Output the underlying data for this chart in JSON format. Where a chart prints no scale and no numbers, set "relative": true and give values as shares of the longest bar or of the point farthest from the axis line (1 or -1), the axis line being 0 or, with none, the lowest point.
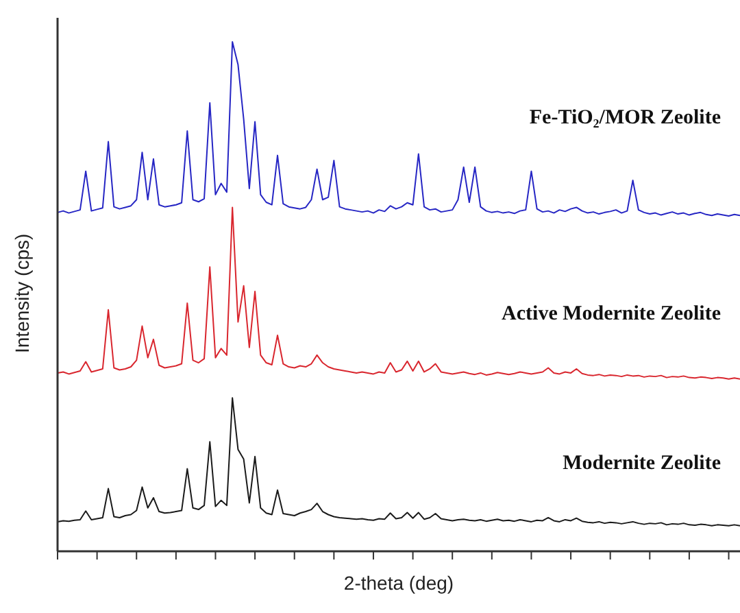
{
  "chart_data": {
    "type": "line",
    "relative": true,
    "xlabel": "2-theta (deg)",
    "ylabel": "Intensity (cps)",
    "tick_labels": false,
    "marker": "none",
    "line_style": "solid",
    "categories": [
      null,
      null,
      null,
      null,
      null,
      null,
      null,
      null,
      null,
      null,
      null,
      null,
      null,
      null,
      null,
      null,
      null,
      null,
      null,
      null,
      null,
      null,
      null,
      null,
      null,
      null,
      null,
      null,
      null,
      null,
      null,
      null,
      null,
      null,
      null,
      null,
      null,
      null,
      null,
      null,
      null,
      null,
      null,
      null,
      null,
      null,
      null,
      null,
      null,
      null,
      null,
      null,
      null,
      null,
      null,
      null,
      null,
      null,
      null,
      null,
      null,
      null,
      null,
      null,
      null,
      null,
      null,
      null,
      null,
      null,
      null,
      null,
      null,
      null,
      null,
      null,
      null,
      null,
      null,
      null,
      null,
      null,
      null,
      null,
      null,
      null,
      null,
      null,
      null,
      null,
      null,
      null,
      null,
      null,
      null,
      null,
      null,
      null,
      null,
      null,
      null,
      null,
      null,
      null,
      null,
      null,
      null,
      null,
      null,
      null,
      null,
      null,
      null,
      null,
      null,
      null,
      null,
      null,
      null,
      null,
      null,
      null
    ],
    "series": [
      {
        "name": "Fe-TiO₂/MOR Zeolite",
        "color": "#2626c4",
        "values": [
          0.665,
          0.668,
          0.664,
          0.667,
          0.67,
          0.746,
          0.668,
          0.671,
          0.674,
          0.804,
          0.676,
          0.672,
          0.675,
          0.678,
          0.69,
          0.783,
          0.69,
          0.77,
          0.68,
          0.676,
          0.678,
          0.68,
          0.684,
          0.825,
          0.69,
          0.686,
          0.692,
          0.88,
          0.7,
          0.722,
          0.705,
          1.0,
          0.955,
          0.848,
          0.712,
          0.843,
          0.7,
          0.685,
          0.68,
          0.777,
          0.682,
          0.676,
          0.674,
          0.672,
          0.675,
          0.69,
          0.75,
          0.69,
          0.695,
          0.767,
          0.676,
          0.672,
          0.67,
          0.668,
          0.666,
          0.668,
          0.664,
          0.67,
          0.667,
          0.678,
          0.672,
          0.676,
          0.684,
          0.68,
          0.78,
          0.676,
          0.67,
          0.672,
          0.666,
          0.668,
          0.67,
          0.69,
          0.754,
          0.685,
          0.754,
          0.676,
          0.668,
          0.665,
          0.667,
          0.664,
          0.666,
          0.663,
          0.668,
          0.67,
          0.746,
          0.672,
          0.666,
          0.668,
          0.664,
          0.67,
          0.667,
          0.672,
          0.675,
          0.668,
          0.664,
          0.666,
          0.662,
          0.665,
          0.667,
          0.67,
          0.664,
          0.668,
          0.728,
          0.67,
          0.665,
          0.662,
          0.664,
          0.66,
          0.663,
          0.666,
          0.662,
          0.664,
          0.66,
          0.663,
          0.665,
          0.661,
          0.659,
          0.662,
          0.66,
          0.658,
          0.661,
          0.659
        ]
      },
      {
        "name": "Active Modernite Zeolite",
        "color": "#d9262e",
        "values": [
          0.35,
          0.352,
          0.348,
          0.351,
          0.354,
          0.372,
          0.352,
          0.355,
          0.358,
          0.474,
          0.36,
          0.356,
          0.358,
          0.362,
          0.375,
          0.442,
          0.38,
          0.416,
          0.365,
          0.36,
          0.362,
          0.364,
          0.368,
          0.487,
          0.375,
          0.37,
          0.378,
          0.558,
          0.38,
          0.398,
          0.385,
          0.675,
          0.45,
          0.521,
          0.4,
          0.51,
          0.385,
          0.37,
          0.366,
          0.424,
          0.368,
          0.362,
          0.36,
          0.364,
          0.362,
          0.368,
          0.385,
          0.37,
          0.362,
          0.358,
          0.356,
          0.354,
          0.352,
          0.35,
          0.352,
          0.35,
          0.348,
          0.352,
          0.35,
          0.37,
          0.352,
          0.356,
          0.373,
          0.354,
          0.373,
          0.352,
          0.358,
          0.368,
          0.352,
          0.35,
          0.348,
          0.35,
          0.352,
          0.349,
          0.347,
          0.35,
          0.346,
          0.348,
          0.351,
          0.349,
          0.347,
          0.349,
          0.352,
          0.35,
          0.348,
          0.35,
          0.352,
          0.36,
          0.35,
          0.348,
          0.352,
          0.35,
          0.358,
          0.349,
          0.346,
          0.345,
          0.347,
          0.344,
          0.346,
          0.345,
          0.343,
          0.346,
          0.344,
          0.345,
          0.342,
          0.344,
          0.343,
          0.345,
          0.341,
          0.343,
          0.342,
          0.344,
          0.341,
          0.34,
          0.342,
          0.341,
          0.339,
          0.341,
          0.34,
          0.338,
          0.34,
          0.338
        ]
      },
      {
        "name": "Modernite Zeolite",
        "color": "#1a1a1a",
        "values": [
          0.058,
          0.06,
          0.059,
          0.061,
          0.062,
          0.079,
          0.062,
          0.064,
          0.066,
          0.123,
          0.068,
          0.066,
          0.07,
          0.072,
          0.08,
          0.126,
          0.085,
          0.105,
          0.078,
          0.075,
          0.076,
          0.078,
          0.08,
          0.162,
          0.085,
          0.082,
          0.09,
          0.215,
          0.088,
          0.1,
          0.09,
          0.301,
          0.2,
          0.181,
          0.095,
          0.186,
          0.085,
          0.075,
          0.072,
          0.12,
          0.074,
          0.072,
          0.07,
          0.075,
          0.078,
          0.082,
          0.094,
          0.078,
          0.072,
          0.068,
          0.066,
          0.065,
          0.064,
          0.063,
          0.064,
          0.062,
          0.061,
          0.064,
          0.063,
          0.075,
          0.064,
          0.066,
          0.076,
          0.065,
          0.076,
          0.063,
          0.066,
          0.074,
          0.064,
          0.062,
          0.06,
          0.062,
          0.063,
          0.061,
          0.06,
          0.062,
          0.059,
          0.061,
          0.063,
          0.06,
          0.061,
          0.059,
          0.062,
          0.06,
          0.058,
          0.061,
          0.06,
          0.066,
          0.06,
          0.058,
          0.062,
          0.06,
          0.065,
          0.059,
          0.057,
          0.056,
          0.058,
          0.055,
          0.057,
          0.056,
          0.054,
          0.056,
          0.058,
          0.055,
          0.053,
          0.055,
          0.054,
          0.056,
          0.052,
          0.054,
          0.053,
          0.055,
          0.052,
          0.051,
          0.053,
          0.052,
          0.05,
          0.052,
          0.051,
          0.05,
          0.052,
          0.05
        ]
      }
    ]
  }
}
